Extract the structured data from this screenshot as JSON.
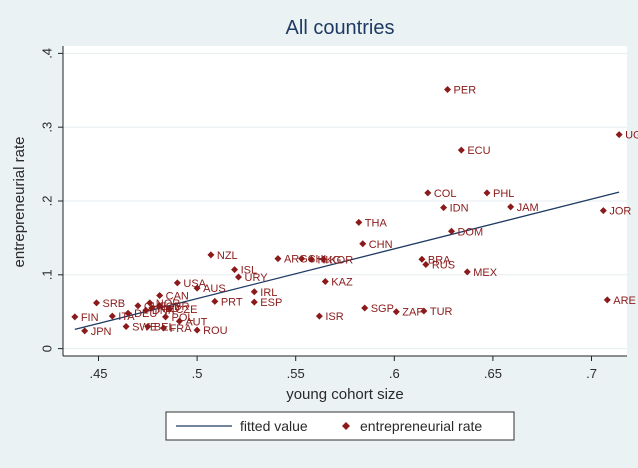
{
  "chart_data": {
    "type": "scatter",
    "title": "All countries",
    "xlabel": "young cohort size",
    "ylabel": "entrepreneurial rate",
    "xlim": [
      0.432,
      0.718
    ],
    "ylim": [
      -0.01,
      0.41
    ],
    "xticks": [
      0.45,
      0.5,
      0.55,
      0.6,
      0.65,
      0.7
    ],
    "xtick_labels": [
      ".45",
      ".5",
      ".55",
      ".6",
      ".65",
      ".7"
    ],
    "yticks": [
      0,
      0.1,
      0.2,
      0.3,
      0.4
    ],
    "ytick_labels": [
      "0",
      ".1",
      ".2",
      ".3",
      ".4"
    ],
    "colors": {
      "plot_bg": "#ffffff",
      "outer_bg": "#eaf2f3",
      "point": "#8b1a1a",
      "fit_line": "#1f3b63",
      "grid": "#e6eef0",
      "axis": "#222222"
    },
    "series": [
      {
        "name": "entrepreneurial rate",
        "kind": "scatter",
        "points": [
          {
            "label": "PER",
            "x": 0.627,
            "y": 0.351
          },
          {
            "label": "UGA",
            "x": 0.714,
            "y": 0.29
          },
          {
            "label": "ECU",
            "x": 0.634,
            "y": 0.269
          },
          {
            "label": "COL",
            "x": 0.617,
            "y": 0.211
          },
          {
            "label": "PHL",
            "x": 0.647,
            "y": 0.211
          },
          {
            "label": "IDN",
            "x": 0.625,
            "y": 0.191
          },
          {
            "label": "JAM",
            "x": 0.659,
            "y": 0.192
          },
          {
            "label": "JOR",
            "x": 0.706,
            "y": 0.187
          },
          {
            "label": "THA",
            "x": 0.582,
            "y": 0.171
          },
          {
            "label": "DOM",
            "x": 0.629,
            "y": 0.159
          },
          {
            "label": "CHN",
            "x": 0.584,
            "y": 0.142
          },
          {
            "label": "BRA",
            "x": 0.614,
            "y": 0.121
          },
          {
            "label": "RUS",
            "x": 0.616,
            "y": 0.114
          },
          {
            "label": "MEX",
            "x": 0.637,
            "y": 0.104
          },
          {
            "label": "NZL",
            "x": 0.507,
            "y": 0.127
          },
          {
            "label": "ARG",
            "x": 0.541,
            "y": 0.122
          },
          {
            "label": "CHL",
            "x": 0.553,
            "y": 0.122
          },
          {
            "label": "HKG",
            "x": 0.558,
            "y": 0.121
          },
          {
            "label": "KOR",
            "x": 0.564,
            "y": 0.121
          },
          {
            "label": "ISL",
            "x": 0.519,
            "y": 0.107
          },
          {
            "label": "URY",
            "x": 0.521,
            "y": 0.097
          },
          {
            "label": "KAZ",
            "x": 0.565,
            "y": 0.091
          },
          {
            "label": "USA",
            "x": 0.49,
            "y": 0.089
          },
          {
            "label": "AUS",
            "x": 0.5,
            "y": 0.082
          },
          {
            "label": "IRL",
            "x": 0.529,
            "y": 0.077
          },
          {
            "label": "CAN",
            "x": 0.481,
            "y": 0.072
          },
          {
            "label": "ESP",
            "x": 0.529,
            "y": 0.063
          },
          {
            "label": "PRT",
            "x": 0.509,
            "y": 0.064
          },
          {
            "label": "ARE",
            "x": 0.708,
            "y": 0.066
          },
          {
            "label": "SGP",
            "x": 0.585,
            "y": 0.055
          },
          {
            "label": "ZAF",
            "x": 0.601,
            "y": 0.05
          },
          {
            "label": "TUR",
            "x": 0.615,
            "y": 0.051
          },
          {
            "label": "ISR",
            "x": 0.562,
            "y": 0.044
          },
          {
            "label": "SRB",
            "x": 0.449,
            "y": 0.062
          },
          {
            "label": "FIN",
            "x": 0.438,
            "y": 0.043
          },
          {
            "label": "SWE",
            "x": 0.464,
            "y": 0.03
          },
          {
            "label": "JPN",
            "x": 0.443,
            "y": 0.024
          },
          {
            "label": "BEL",
            "x": 0.475,
            "y": 0.03
          },
          {
            "label": "FRA",
            "x": 0.483,
            "y": 0.028
          },
          {
            "label": "ROU",
            "x": 0.5,
            "y": 0.025
          },
          {
            "label": "AUT",
            "x": 0.491,
            "y": 0.037
          },
          {
            "label": "POL",
            "x": 0.484,
            "y": 0.043
          },
          {
            "label": "DNK",
            "x": 0.474,
            "y": 0.052
          },
          {
            "label": "NLD",
            "x": 0.477,
            "y": 0.055
          },
          {
            "label": "GBR",
            "x": 0.481,
            "y": 0.058
          },
          {
            "label": "CHE",
            "x": 0.47,
            "y": 0.058
          },
          {
            "label": "DEU",
            "x": 0.465,
            "y": 0.048
          },
          {
            "label": "ITA",
            "x": 0.457,
            "y": 0.044
          },
          {
            "label": "NOR",
            "x": 0.476,
            "y": 0.062
          },
          {
            "label": "CZE",
            "x": 0.486,
            "y": 0.054
          }
        ]
      },
      {
        "name": "fitted value",
        "kind": "line",
        "points": [
          {
            "x": 0.438,
            "y": 0.026
          },
          {
            "x": 0.714,
            "y": 0.212
          }
        ]
      }
    ],
    "legend": {
      "position": "bottom-center",
      "entries": [
        "fitted value",
        "entrepreneurial rate"
      ]
    }
  }
}
